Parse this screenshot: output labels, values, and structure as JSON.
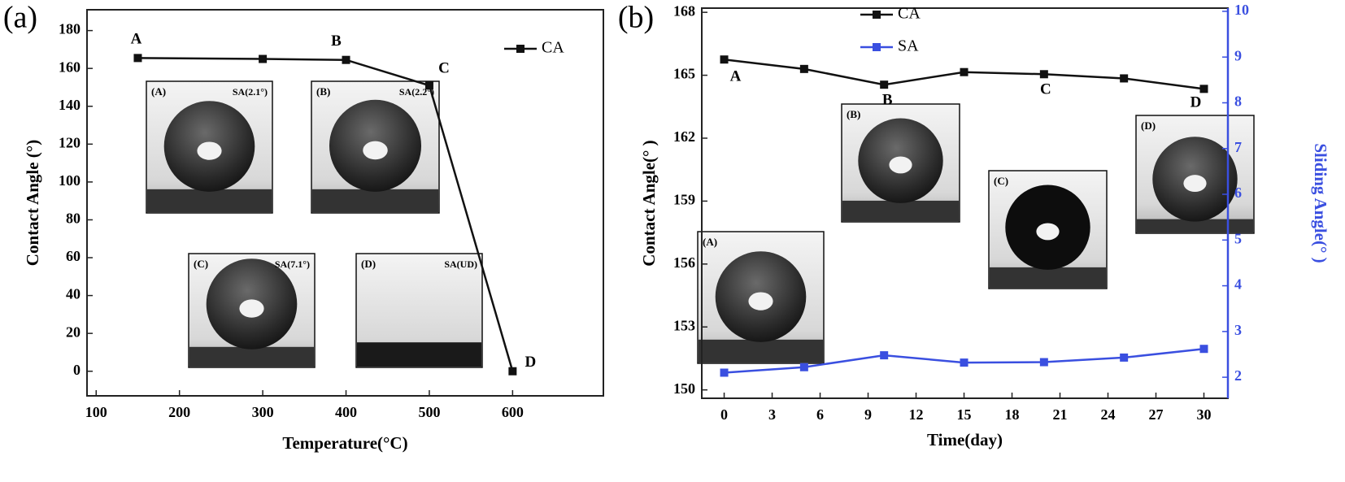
{
  "chart_data": [
    {
      "type": "line",
      "panel_label": "(a)",
      "xlabel": "Temperature(°C)",
      "ylabel": "Contact Angle (°)",
      "x": [
        150,
        300,
        400,
        500,
        600
      ],
      "series": [
        {
          "name": "CA",
          "color": "#111111",
          "values": [
            165.5,
            165,
            164.5,
            151,
            0
          ]
        }
      ],
      "xlim": [
        89,
        709
      ],
      "xticks": [
        100,
        200,
        300,
        400,
        500,
        600
      ],
      "ylim": [
        -13,
        191
      ],
      "yticks": [
        0,
        20,
        40,
        60,
        80,
        100,
        120,
        140,
        160,
        180
      ],
      "legend": "upper right",
      "point_labels": [
        {
          "x": 150,
          "label": "A"
        },
        {
          "x": 400,
          "label": "B"
        },
        {
          "x": 500,
          "label": "C"
        },
        {
          "x": 600,
          "label": "D"
        }
      ],
      "insets": [
        {
          "label": "(A)",
          "note": "SA(2.1°)"
        },
        {
          "label": "(B)",
          "note": "SA(2.2°)"
        },
        {
          "label": "(C)",
          "note": "SA(7.1°)"
        },
        {
          "label": "(D)",
          "note": "SA(UD)"
        }
      ]
    },
    {
      "type": "line",
      "panel_label": "(b)",
      "xlabel": "Time(day)",
      "ylabel": "Contact Angle(°  )",
      "y2label": "Sliding Angle(°  )",
      "x": [
        0,
        5,
        10,
        15,
        20,
        25,
        30
      ],
      "series": [
        {
          "name": "CA",
          "color": "#111111",
          "values": [
            165.75,
            165.3,
            164.55,
            165.15,
            165.05,
            164.85,
            164.35
          ]
        },
        {
          "name": "SA",
          "color": "#3a4fe0",
          "axis": "y2",
          "values": [
            2.1,
            2.22,
            2.48,
            2.32,
            2.33,
            2.43,
            2.62
          ]
        }
      ],
      "xlim": [
        -1.4,
        31.5
      ],
      "xticks": [
        0,
        3,
        6,
        9,
        12,
        15,
        18,
        21,
        24,
        27,
        30
      ],
      "ylim": [
        149.6,
        168.2
      ],
      "yticks": [
        150,
        153,
        156,
        159,
        162,
        165,
        168
      ],
      "y2lim": [
        1.54,
        10.07
      ],
      "y2ticks": [
        2,
        3,
        4,
        5,
        6,
        7,
        8,
        9,
        10
      ],
      "legend": "upper left",
      "point_labels": [
        {
          "x": 0,
          "label": "A"
        },
        {
          "x": 10,
          "label": "B"
        },
        {
          "x": 20,
          "label": "C"
        },
        {
          "x": 30,
          "label": "D"
        }
      ],
      "insets": [
        {
          "label": "(A)"
        },
        {
          "label": "(B)"
        },
        {
          "label": "(C)"
        },
        {
          "label": "(D)"
        }
      ]
    }
  ]
}
